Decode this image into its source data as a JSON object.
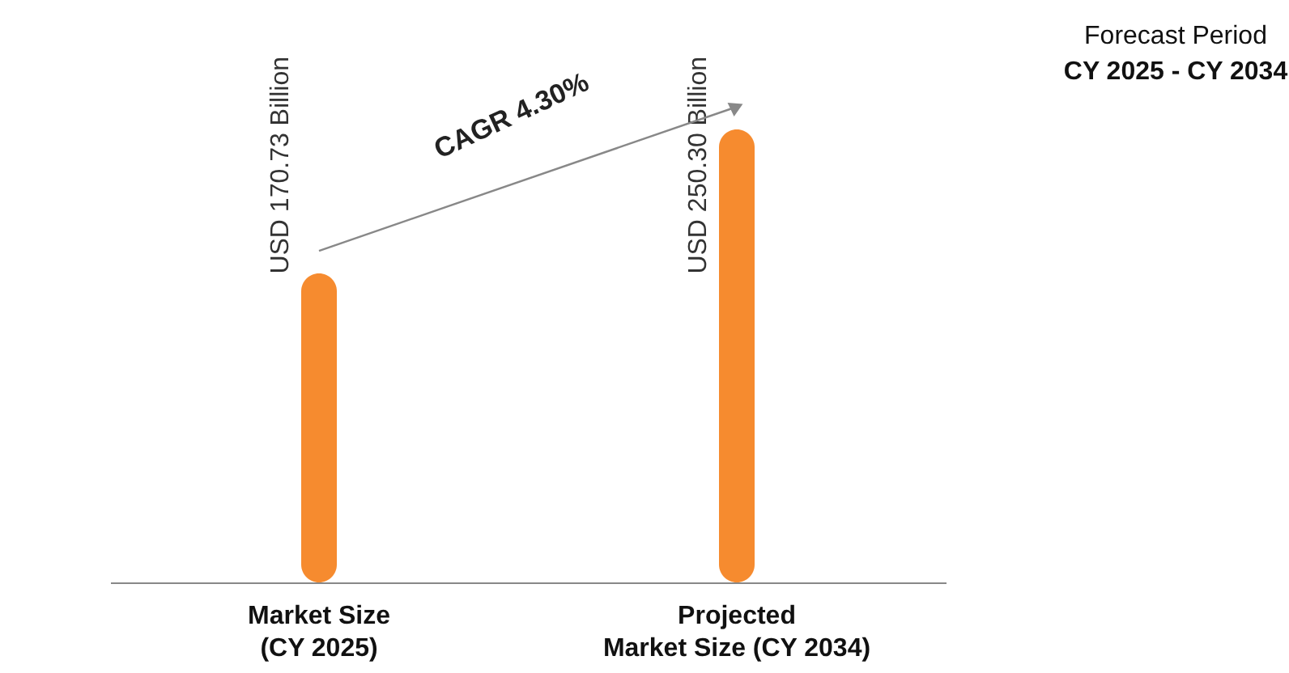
{
  "chart_data": {
    "type": "bar",
    "title": "Forecast Period",
    "subtitle": "CY 2025 - CY 2034",
    "categories": [
      "Market Size\n(CY 2025)",
      "Projected\nMarket Size (CY 2034)"
    ],
    "values": [
      170.73,
      250.3
    ],
    "value_labels": [
      "USD 170.73 Billion",
      "USD 250.30 Billion"
    ],
    "color": "#f68b2f",
    "annotations": [
      "CAGR 4.30%"
    ]
  }
}
